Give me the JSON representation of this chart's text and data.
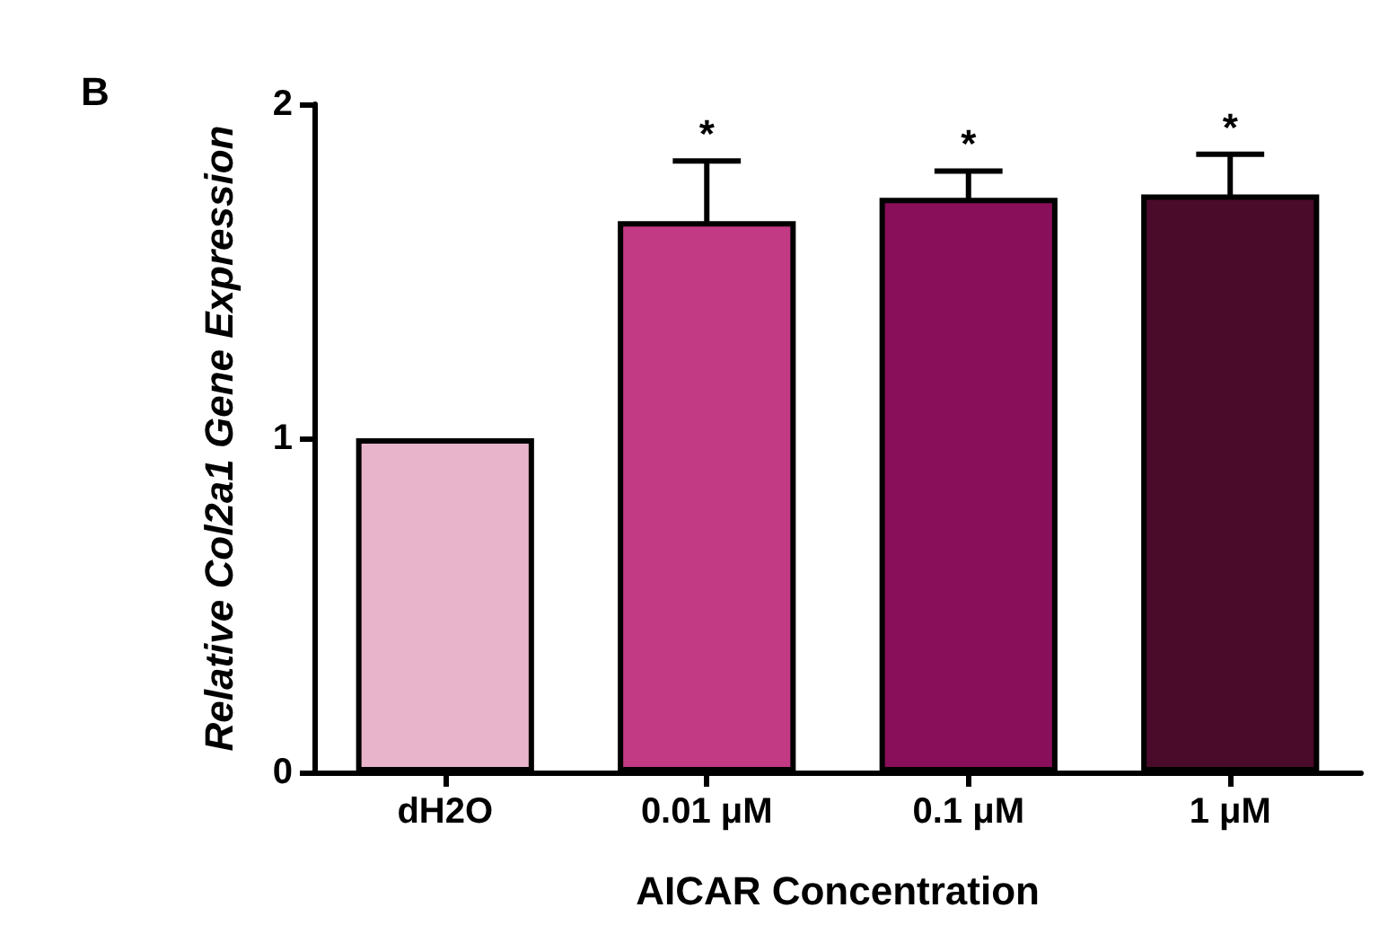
{
  "chart_data": {
    "type": "bar",
    "xlabel": "AICAR Concentration",
    "ylabel": "Relative Col2a1 Gene Expression",
    "categories": [
      "dH2O",
      "0.01 μM",
      "0.1 μM",
      "1 μM"
    ],
    "values": [
      1,
      1.65,
      1.72,
      1.73
    ],
    "errors": [
      null,
      0.18,
      0.08,
      0.12
    ],
    "colors": [
      "#e8b4cc",
      "#c23a84",
      "#8a0f5a",
      "#4a0a2a"
    ],
    "ylim": [
      0,
      2
    ],
    "yticks": [
      0,
      1,
      2
    ],
    "grid": false,
    "annotations": [
      "B",
      {
        "text": "*",
        "x": "0.01 μM",
        "y": 1.83
      },
      {
        "text": "*",
        "x": "0.1 μM",
        "y": 1.8
      },
      {
        "text": "*",
        "x": "1 μM",
        "y": 1.85
      }
    ]
  }
}
